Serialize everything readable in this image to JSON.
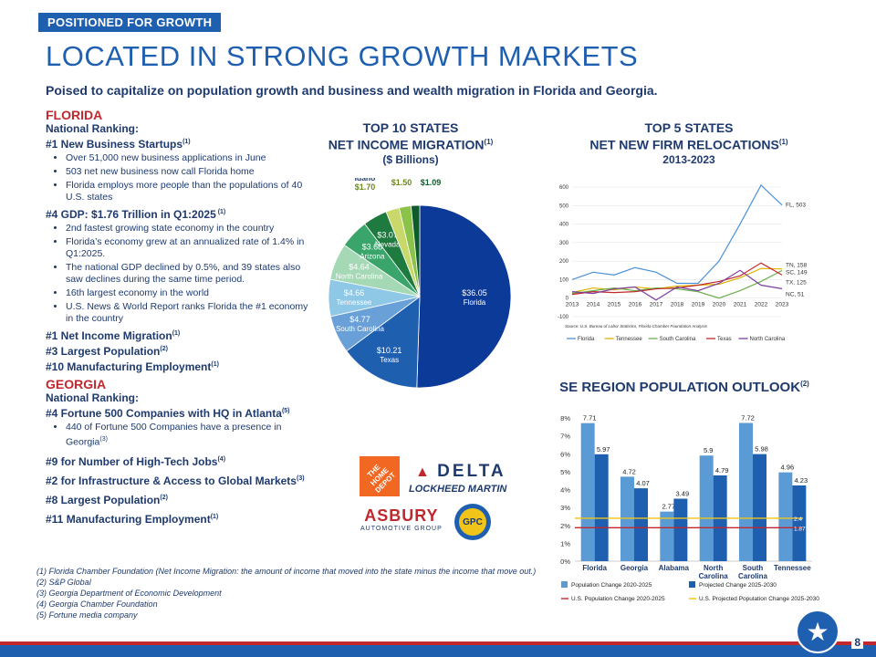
{
  "header": {
    "tag": "POSITIONED FOR GROWTH",
    "title": "LOCATED IN STRONG GROWTH MARKETS",
    "subtitle": "Poised to capitalize on population growth and business and wealth migration in Florida and Georgia."
  },
  "florida": {
    "state": "FLORIDA",
    "ranking": "National Ranking:",
    "h1": "#1 New Business Startups",
    "h1sup": "(1)",
    "b1": [
      "Over 51,000 new business applications in June",
      "503 net new business now call Florida home",
      "Florida employs more people than the populations of 40 U.S. states"
    ],
    "h2": "#4 GDP: $1.76 Trillion in Q1:2025",
    "h2sup": " (1)",
    "b2": [
      "2nd fastest growing state economy in the country",
      "Florida’s economy grew at an annualized rate of 1.4% in Q1:2025.",
      "The national GDP declined by 0.5%, and 39 states also saw declines during the same time period.",
      "16th largest economy in the world",
      "U.S. News & World Report ranks Florida the #1 economy in the country"
    ],
    "h3": "#1 Net Income Migration",
    "h3sup": "(1)",
    "h4": "#3 Largest Population",
    "h4sup": "(2)",
    "h5": "#10 Manufacturing Employment",
    "h5sup": "(1)"
  },
  "georgia": {
    "state": "GEORGIA",
    "ranking": "National Ranking:",
    "h1": "#4 Fortune 500 Companies with HQ in Atlanta",
    "h1sup": "(5)",
    "b1": "440 of Fortune 500 Companies have a presence in Georgia",
    "b1sup": "(3)",
    "h2": "#9 for Number of High-Tech Jobs",
    "h2sup": "(4)",
    "h3": "#2 for Infrastructure & Access to Global Markets",
    "h3sup": "(3)",
    "h4": "#8 Largest Population",
    "h4sup": "(2)",
    "h5": "#11 Manufacturing Employment",
    "h5sup": "(1)"
  },
  "logos": {
    "homedepot": "THE HOME DEPOT",
    "delta": "DELTA",
    "lockheed": "LOCKHEED MARTIN",
    "asbury": "ASBURY",
    "asbury_sub": "AUTOMOTIVE GROUP",
    "gpc": "GPC"
  },
  "footnotes": [
    "(1) Florida Chamber Foundation (Net Income Migration: the amount of income that moved into the state minus the income that move out.)",
    "(2) S&P Global",
    "(3) Georgia Department of Economic Development",
    "(4) Georgia Chamber Foundation",
    "(5) Fortune media company"
  ],
  "page_number": "8",
  "colors": {
    "red": "#c0282d",
    "blue": "#1f5fb0",
    "navy": "#1e3a6e"
  },
  "chart_data": [
    {
      "type": "pie",
      "title": "TOP 10 STATES",
      "title2": "NET INCOME MIGRATION",
      "title_sup": "(1)",
      "subtitle": "($ Billions)",
      "slices": [
        {
          "label": "Florida",
          "value": 36.05,
          "text": "$36.05"
        },
        {
          "label": "Texas",
          "value": 10.21,
          "text": "$10.21"
        },
        {
          "label": "South Carolina",
          "value": 4.77,
          "text": "$4.77"
        },
        {
          "label": "Tennessee",
          "value": 4.66,
          "text": "$4.66"
        },
        {
          "label": "North Carolina",
          "value": 4.64,
          "text": "$4.64"
        },
        {
          "label": "Arizona",
          "value": 3.68,
          "text": "$3.68"
        },
        {
          "label": "Nevada",
          "value": 3.07,
          "text": "$3.07"
        },
        {
          "label": "Idaho",
          "value": 1.7,
          "text": "$1.70"
        },
        {
          "label": "Colorado",
          "value": 1.5,
          "text": "$1.50"
        },
        {
          "label": "Utah",
          "value": 1.09,
          "text": "$1.09"
        }
      ],
      "colors": [
        "#0b3a99",
        "#1f5fb0",
        "#6aa0d8",
        "#8fc7e6",
        "#a5d8b4",
        "#3aa56a",
        "#1f7a3f",
        "#c8d86a",
        "#8bc34a",
        "#0d5a2a"
      ]
    },
    {
      "type": "line",
      "title": "TOP 5 STATES",
      "title2": "NET NEW FIRM RELOCATIONS",
      "title_sup": "(1)",
      "subtitle": "2013-2023",
      "x": [
        2013,
        2014,
        2015,
        2016,
        2017,
        2018,
        2019,
        2020,
        2021,
        2022,
        2023
      ],
      "ylim": [
        -100,
        600
      ],
      "yticks": [
        -100,
        0,
        100,
        200,
        300,
        400,
        500,
        600
      ],
      "series": [
        {
          "name": "Florida",
          "color": "#4a90d9",
          "values": [
            100,
            140,
            125,
            165,
            140,
            80,
            80,
            200,
            400,
            610,
            503
          ]
        },
        {
          "name": "Tennessee",
          "color": "#e0b300",
          "values": [
            30,
            55,
            45,
            60,
            50,
            65,
            70,
            75,
            110,
            160,
            158
          ]
        },
        {
          "name": "South Carolina",
          "color": "#6ab04c",
          "values": [
            25,
            40,
            55,
            40,
            55,
            50,
            35,
            0,
            40,
            90,
            149
          ]
        },
        {
          "name": "Texas",
          "color": "#c0282d",
          "values": [
            20,
            35,
            30,
            35,
            50,
            55,
            70,
            90,
            120,
            190,
            125
          ]
        },
        {
          "name": "North Carolina",
          "color": "#7b3fa0",
          "values": [
            35,
            25,
            50,
            60,
            -10,
            60,
            40,
            80,
            150,
            70,
            51
          ]
        }
      ],
      "end_labels": [
        "FL, 503",
        "TN, 158",
        "SC, 149",
        "TX, 125",
        "NC, 51"
      ],
      "source": "Source: U.S. Bureau of Labor Statistics, Florida Chamber Foundation Analysis"
    },
    {
      "type": "bar",
      "title": "SE REGION POPULATION OUTLOOK",
      "title_sup": "(2)",
      "categories": [
        "Florida",
        "Georgia",
        "Alabama",
        "North Carolina",
        "South Carolina",
        "Tennessee"
      ],
      "series": [
        {
          "name": "Population Change 2020-2025",
          "color": "#5b9bd5",
          "values": [
            7.71,
            4.72,
            2.77,
            5.9,
            7.72,
            4.96
          ]
        },
        {
          "name": "Projected Change 2025-2030",
          "color": "#1f5fb0",
          "values": [
            5.97,
            4.07,
            3.49,
            4.79,
            5.98,
            4.23
          ]
        }
      ],
      "ref_lines": [
        {
          "name": "U.S. Population Change 2020-2025",
          "color": "#c0282d",
          "value": 1.87
        },
        {
          "name": "U.S. Projected Population Change 2025-2030",
          "color": "#f0c419",
          "value": 2.4
        }
      ],
      "value_labels": [
        [
          "7.71",
          "4.72",
          "2.77",
          "5.9",
          "7.72",
          "4.96"
        ],
        [
          "5.97",
          "4.07",
          "3.49",
          "4.79",
          "5.98",
          "4.23"
        ]
      ],
      "ylim": [
        0,
        8
      ],
      "yticks": [
        "0%",
        "1%",
        "2%",
        "3%",
        "4%",
        "5%",
        "6%",
        "7%",
        "8%"
      ],
      "ref_labels": [
        "2.4",
        "1.87"
      ]
    }
  ]
}
